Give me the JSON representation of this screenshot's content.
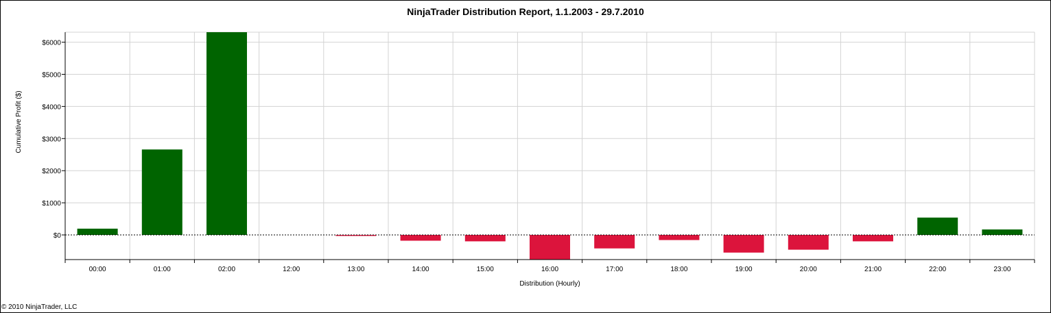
{
  "chart_data": {
    "type": "bar",
    "title": "NinjaTrader Distribution Report, 1.1.2003 - 29.7.2010",
    "xlabel": "Distribution (Hourly)",
    "ylabel": "Cumulative Profit ($)",
    "categories": [
      "00:00",
      "01:00",
      "02:00",
      "12:00",
      "13:00",
      "14:00",
      "15:00",
      "16:00",
      "17:00",
      "18:00",
      "19:00",
      "20:00",
      "21:00",
      "22:00",
      "23:00"
    ],
    "values": [
      195,
      2660,
      6330,
      0,
      -30,
      -180,
      -200,
      -780,
      -420,
      -160,
      -550,
      -460,
      -200,
      540,
      170
    ],
    "ylim": [
      -780,
      6330
    ],
    "yticks": [
      0,
      1000,
      2000,
      3000,
      4000,
      5000,
      6000
    ],
    "ytick_labels": [
      "$0",
      "$1000",
      "$2000",
      "$3000",
      "$4000",
      "$5000",
      "$6000"
    ],
    "grid": true,
    "colors": {
      "positive": "#006400",
      "negative": "#dc143c",
      "grid": "#d3d3d3"
    }
  },
  "footer": {
    "copyright": "© 2010 NinjaTrader, LLC"
  }
}
